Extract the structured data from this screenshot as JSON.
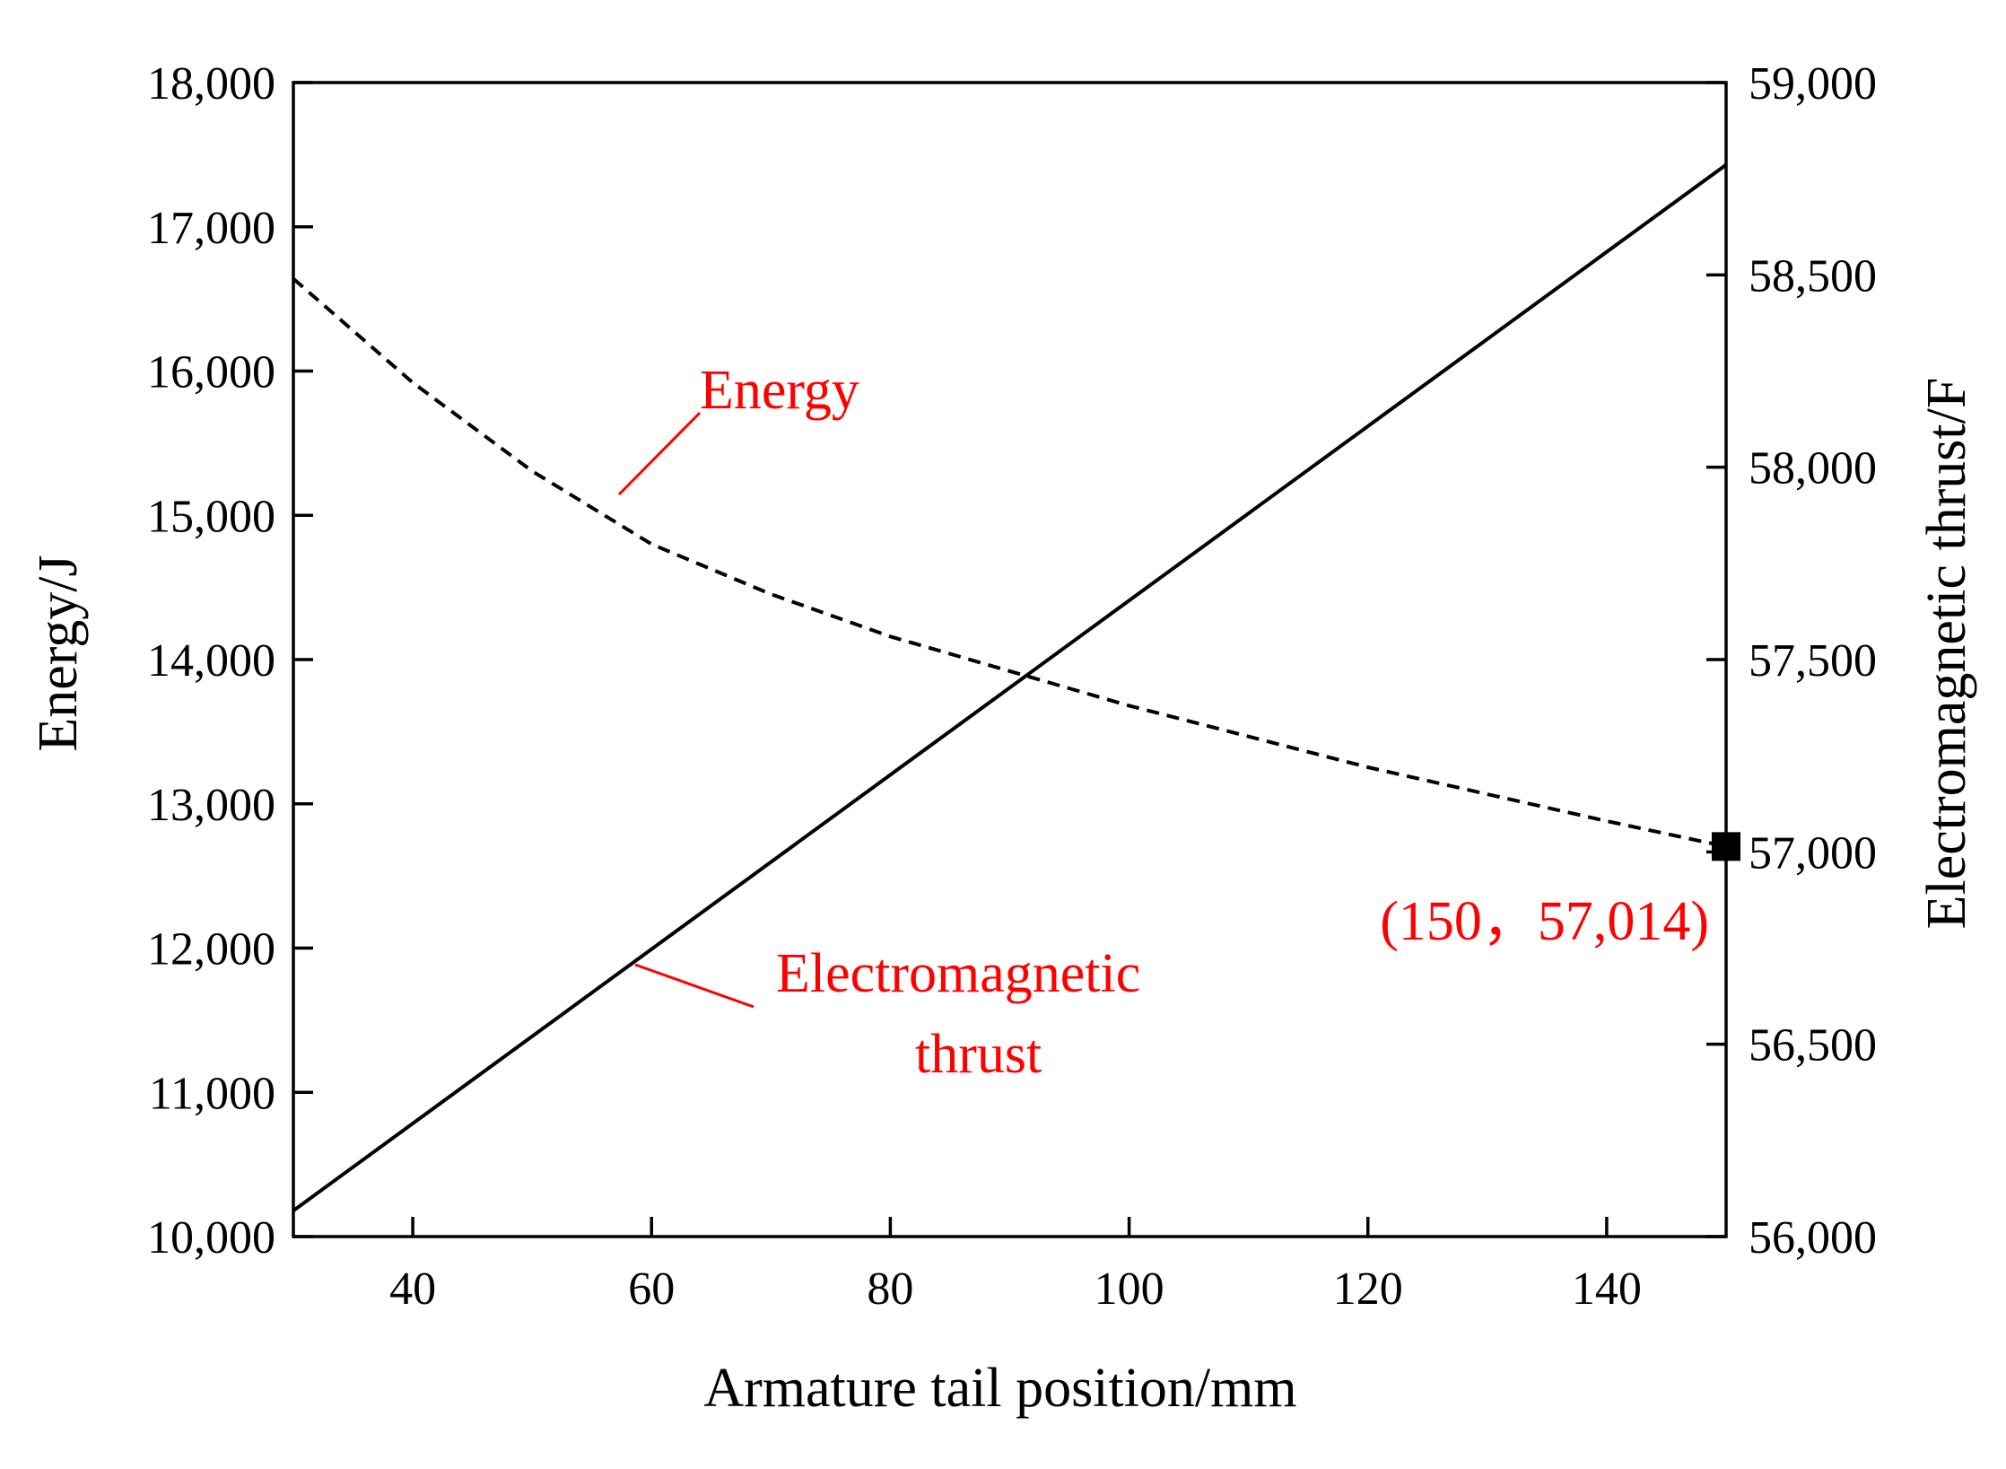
{
  "chart_data": {
    "type": "line",
    "xlabel": "Armature tail position/mm",
    "ylabel_left": "Energy/J",
    "ylabel_right": "Electromagnetic thrust/F",
    "xlim": [
      30,
      150
    ],
    "ylim_left": [
      10000,
      18000
    ],
    "ylim_right": [
      56000,
      59000
    ],
    "x_ticks": [
      40,
      60,
      80,
      100,
      120,
      140
    ],
    "x_tick_labels": [
      "40",
      "60",
      "80",
      "100",
      "120",
      "140"
    ],
    "y_left_ticks": [
      10000,
      11000,
      12000,
      13000,
      14000,
      15000,
      16000,
      17000,
      18000
    ],
    "y_left_tick_labels": [
      "10,000",
      "11,000",
      "12,000",
      "13,000",
      "14,000",
      "15,000",
      "16,000",
      "17,000",
      "18,000"
    ],
    "y_right_ticks": [
      56000,
      56500,
      57000,
      57500,
      58000,
      58500,
      59000
    ],
    "y_right_tick_labels": [
      "56,000",
      "56,500",
      "57,000",
      "57,500",
      "58,000",
      "58,500",
      "59,000"
    ],
    "grid": false,
    "series": [
      {
        "name": "Energy",
        "axis": "right",
        "style": "dashed",
        "x": [
          30,
          40,
          50,
          60,
          70,
          80,
          90,
          100,
          110,
          120,
          130,
          140,
          150
        ],
        "values": [
          58490,
          58220,
          57990,
          57800,
          57670,
          57560,
          57470,
          57380,
          57300,
          57220,
          57150,
          57080,
          57014
        ]
      },
      {
        "name": "Electromagnetic thrust",
        "axis": "left",
        "style": "solid",
        "x": [
          30,
          150
        ],
        "values": [
          10180,
          17430
        ]
      }
    ],
    "annotations": [
      {
        "text": "Energy",
        "color": "#ff0000"
      },
      {
        "lines": [
          "Electromagnetic",
          "thrust"
        ],
        "color": "#ff0000"
      },
      {
        "text": "(150，57,014)",
        "color": "#ff0000",
        "point": {
          "x": 150,
          "y": 57014,
          "axis": "right"
        }
      }
    ],
    "colors": {
      "line": "#000000",
      "annotation": "#ff0000"
    }
  }
}
